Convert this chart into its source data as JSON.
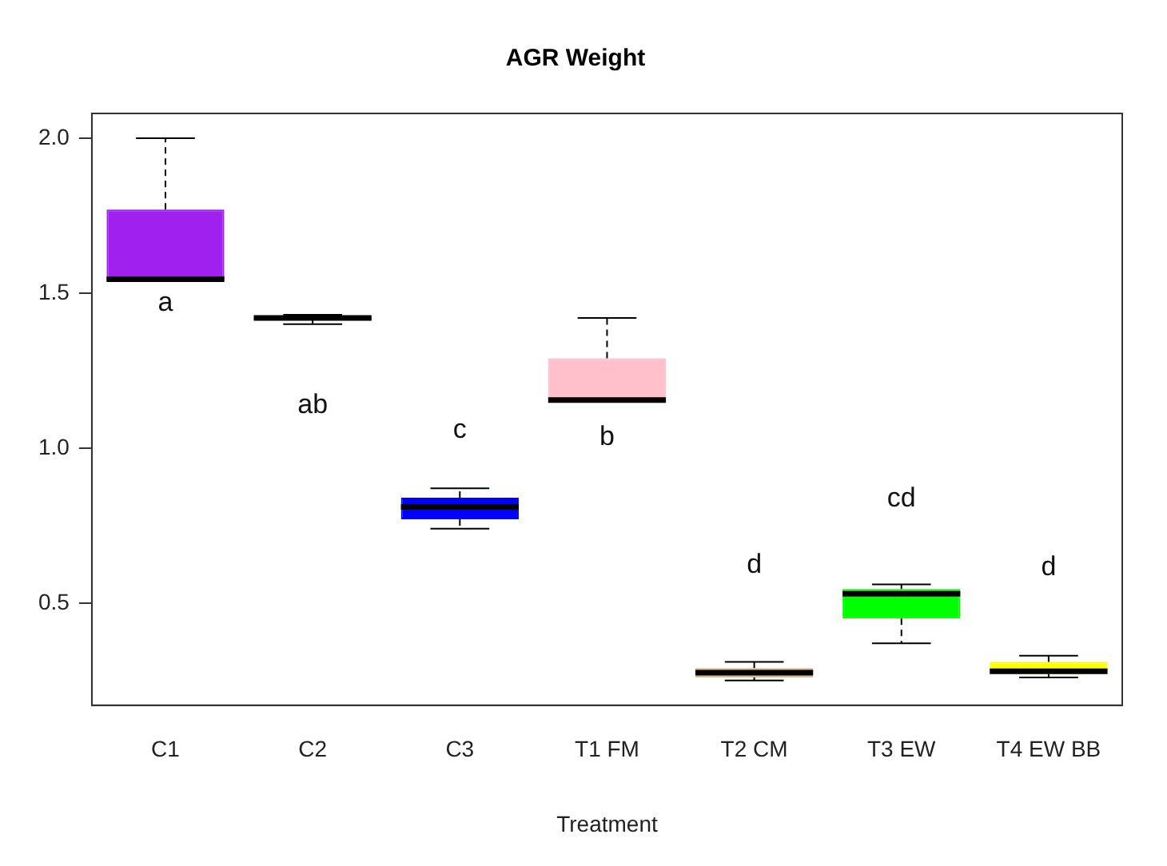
{
  "chart_data": {
    "type": "box",
    "title": "AGR Weight",
    "xlabel": "Treatment",
    "categories": [
      "C1",
      "C2",
      "C3",
      "T1 FM",
      "T2 CM",
      "T3 EW",
      "T4 EW BB"
    ],
    "colors": [
      "#a020f0",
      "#d3d3d3",
      "#0000ff",
      "#ffc0cb",
      "#deb887",
      "#00ff00",
      "#ffff00"
    ],
    "boxes": [
      {
        "low": 1.54,
        "q1": 1.54,
        "median": 1.545,
        "q3": 1.77,
        "high": 2.0
      },
      {
        "low": 1.4,
        "q1": 1.415,
        "median": 1.42,
        "q3": 1.425,
        "high": 1.43
      },
      {
        "low": 0.74,
        "q1": 0.77,
        "median": 0.81,
        "q3": 0.84,
        "high": 0.87
      },
      {
        "low": 1.15,
        "q1": 1.15,
        "median": 1.155,
        "q3": 1.29,
        "high": 1.42
      },
      {
        "low": 0.25,
        "q1": 0.26,
        "median": 0.275,
        "q3": 0.29,
        "high": 0.31
      },
      {
        "low": 0.37,
        "q1": 0.45,
        "median": 0.53,
        "q3": 0.545,
        "high": 0.56
      },
      {
        "low": 0.26,
        "q1": 0.27,
        "median": 0.28,
        "q3": 0.31,
        "high": 0.33
      }
    ],
    "ylim": [
      0.17,
      2.08
    ],
    "yticks": [
      {
        "value": 0.5,
        "label": "0.5"
      },
      {
        "value": 1.0,
        "label": "1.0"
      },
      {
        "value": 1.5,
        "label": "1.5"
      },
      {
        "value": 2.0,
        "label": "2.0"
      }
    ],
    "annotations": [
      "a",
      "ab",
      "c",
      "b",
      "d",
      "cd",
      "d"
    ],
    "grid": false,
    "legend": false
  }
}
